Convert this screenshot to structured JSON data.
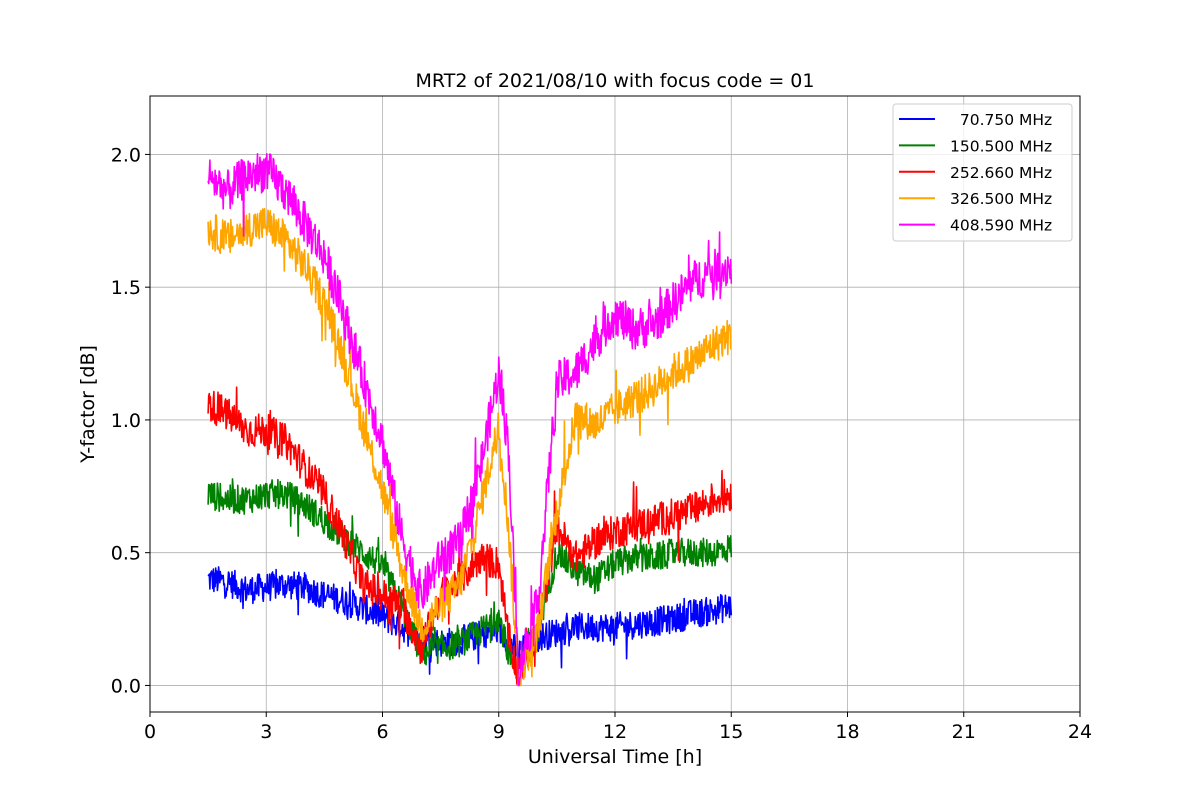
{
  "chart_data": {
    "type": "line",
    "title": "MRT2 of 2021/08/10 with focus code = 01",
    "xlabel": "Universal Time [h]",
    "ylabel": "Y-factor [dB]",
    "xlim": [
      0,
      24
    ],
    "ylim": [
      -0.1,
      2.22
    ],
    "xticks": [
      0,
      3,
      6,
      9,
      12,
      15,
      18,
      21,
      24
    ],
    "yticks": [
      0.0,
      0.5,
      1.0,
      1.5,
      2.0
    ],
    "xtick_labels": [
      "0",
      "3",
      "6",
      "9",
      "12",
      "15",
      "18",
      "21",
      "24"
    ],
    "ytick_labels": [
      "0.0",
      "0.5",
      "1.0",
      "1.5",
      "2.0"
    ],
    "grid": true,
    "legend_position": "top-right",
    "x": [
      1.5,
      2.0,
      2.5,
      3.0,
      3.5,
      4.0,
      4.5,
      5.0,
      5.5,
      6.0,
      6.5,
      7.0,
      7.5,
      8.0,
      8.5,
      9.0,
      9.25,
      9.5,
      10.0,
      10.5,
      11.0,
      11.5,
      12.0,
      12.5,
      13.0,
      13.5,
      14.0,
      14.5,
      15.0
    ],
    "series": [
      {
        "name": "  70.750 MHz",
        "color": "#0000ff",
        "values": [
          0.4,
          0.39,
          0.36,
          0.37,
          0.38,
          0.37,
          0.34,
          0.32,
          0.29,
          0.26,
          0.22,
          0.18,
          0.16,
          0.17,
          0.19,
          0.21,
          0.17,
          0.12,
          0.18,
          0.2,
          0.22,
          0.22,
          0.22,
          0.23,
          0.24,
          0.25,
          0.27,
          0.28,
          0.3
        ]
      },
      {
        "name": "150.500 MHz",
        "color": "#008000",
        "values": [
          0.72,
          0.7,
          0.7,
          0.72,
          0.72,
          0.68,
          0.62,
          0.56,
          0.5,
          0.45,
          0.3,
          0.12,
          0.14,
          0.16,
          0.2,
          0.26,
          0.12,
          0.06,
          0.2,
          0.5,
          0.43,
          0.4,
          0.46,
          0.48,
          0.48,
          0.5,
          0.5,
          0.5,
          0.52
        ]
      },
      {
        "name": "252.660 MHz",
        "color": "#ff0000",
        "values": [
          1.06,
          1.02,
          0.96,
          0.96,
          0.92,
          0.82,
          0.72,
          0.56,
          0.38,
          0.34,
          0.3,
          0.14,
          0.34,
          0.4,
          0.48,
          0.46,
          0.18,
          0.04,
          0.2,
          0.6,
          0.48,
          0.54,
          0.58,
          0.6,
          0.62,
          0.64,
          0.66,
          0.7,
          0.72
        ]
      },
      {
        "name": "326.500 MHz",
        "color": "#ffa500",
        "values": [
          1.72,
          1.68,
          1.72,
          1.74,
          1.68,
          1.58,
          1.44,
          1.24,
          0.98,
          0.74,
          0.44,
          0.22,
          0.3,
          0.38,
          0.66,
          0.98,
          0.6,
          0.04,
          0.2,
          0.66,
          1.02,
          0.98,
          1.04,
          1.08,
          1.12,
          1.18,
          1.22,
          1.28,
          1.32
        ]
      },
      {
        "name": "408.590 MHz",
        "color": "#ff00ff",
        "values": [
          1.92,
          1.86,
          1.92,
          1.94,
          1.86,
          1.74,
          1.62,
          1.4,
          1.16,
          0.92,
          0.56,
          0.34,
          0.48,
          0.54,
          0.8,
          1.18,
          0.9,
          0.06,
          0.3,
          1.14,
          1.18,
          1.3,
          1.4,
          1.34,
          1.36,
          1.44,
          1.52,
          1.56,
          1.58
        ]
      }
    ]
  }
}
